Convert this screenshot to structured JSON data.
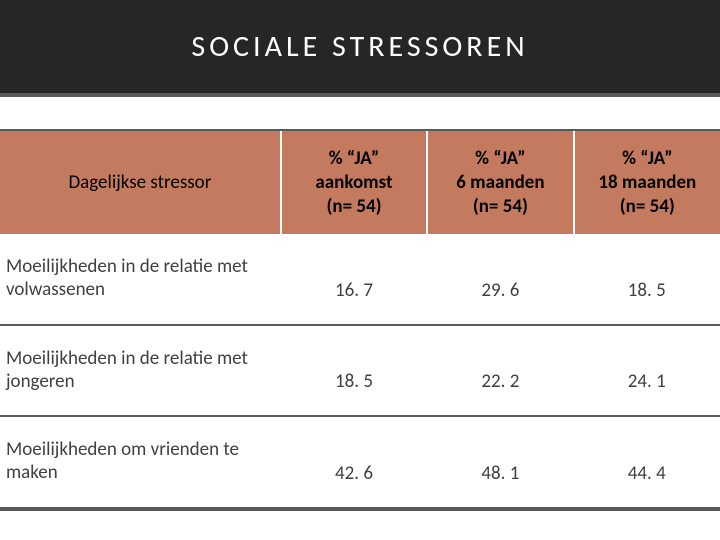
{
  "title": "SOCIALE STRESSOREN",
  "title_fontsize": 30,
  "body_fontsize": 19,
  "colors": {
    "title_bg": "#262626",
    "title_text": "#ffffff",
    "header_bg": "#c37a5e",
    "header_text": "#000000",
    "rule": "#595959",
    "cell_text": "#404040",
    "page_bg": "#ffffff"
  },
  "table": {
    "type": "table",
    "row_header_width_pct": 39,
    "columns": [
      {
        "lines": [
          "Dagelijkse stressor"
        ],
        "is_row_header": true,
        "font_weight": 400
      },
      {
        "lines": [
          "% “JA”",
          "aankomst",
          "(n= 54)"
        ],
        "is_row_header": false,
        "font_weight": 700
      },
      {
        "lines": [
          "% “JA”",
          "6 maanden",
          "(n= 54)"
        ],
        "is_row_header": false,
        "font_weight": 700
      },
      {
        "lines": [
          "% “JA”",
          "18 maanden",
          "(n= 54)"
        ],
        "is_row_header": false,
        "font_weight": 700
      }
    ],
    "rows": [
      {
        "label": "Moeilijkheden in de relatie met volwassenen",
        "values": [
          "16. 7",
          "29. 6",
          "18. 5"
        ]
      },
      {
        "label": "Moeilijkheden in de relatie met jongeren",
        "values": [
          "18. 5",
          "22. 2",
          "24. 1"
        ]
      },
      {
        "label": "Moeilijkheden om vrienden te maken",
        "values": [
          "42. 6",
          "48. 1",
          "44. 4"
        ]
      }
    ]
  }
}
